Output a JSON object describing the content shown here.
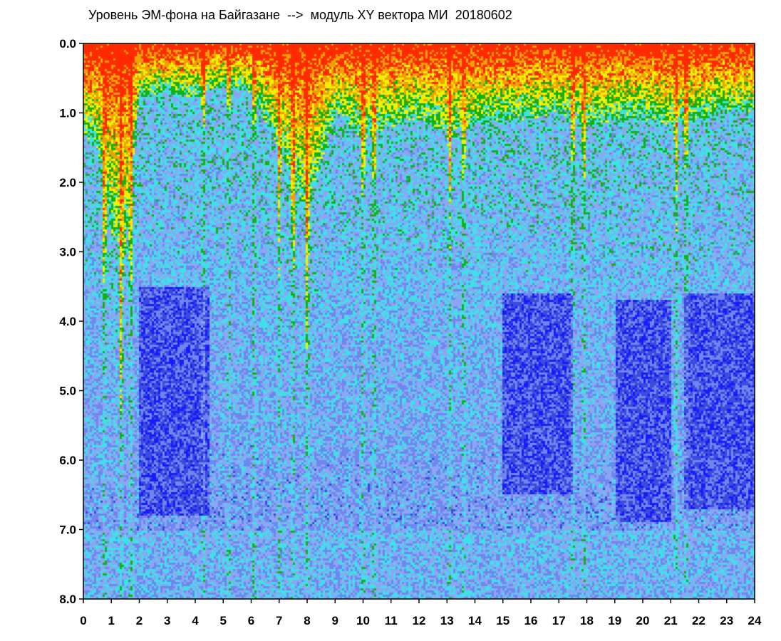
{
  "chart_data": {
    "type": "heatmap",
    "title": "Уровень ЭМ-фона на Байгазане  -->  модуль XY вектора МИ  20180602",
    "xlabel": "",
    "ylabel": "",
    "xlim": [
      0,
      24
    ],
    "ylim": [
      8.0,
      0.0
    ],
    "x_ticks": [
      "0",
      "1",
      "2",
      "3",
      "4",
      "5",
      "6",
      "7",
      "8",
      "9",
      "10",
      "11",
      "12",
      "13",
      "14",
      "15",
      "16",
      "17",
      "18",
      "19",
      "20",
      "21",
      "22",
      "23",
      "24"
    ],
    "y_ticks": [
      "0.0",
      "1.0",
      "2.0",
      "3.0",
      "4.0",
      "5.0",
      "6.0",
      "7.0",
      "8.0"
    ],
    "grid": false,
    "legend": "none",
    "colormap": [
      "#1a1aff",
      "#3b4bdc",
      "#6f86ee",
      "#8ba6f2",
      "#40e0e8",
      "#14b014",
      "#f0f000",
      "#f0a000",
      "#ff2a00"
    ],
    "gap_hours": [
      0.75,
      1.35,
      1.7,
      4.3,
      5.2,
      6.1,
      7.0,
      7.5,
      8.0,
      10.0,
      10.4,
      13.1,
      13.6,
      17.5,
      17.9,
      21.2,
      21.55
    ],
    "upper_band_depth": [
      {
        "x": 0.0,
        "y": 1.3
      },
      {
        "x": 0.5,
        "y": 1.5
      },
      {
        "x": 1.0,
        "y": 2.8
      },
      {
        "x": 1.5,
        "y": 3.0
      },
      {
        "x": 2.0,
        "y": 0.8
      },
      {
        "x": 3.0,
        "y": 0.7
      },
      {
        "x": 4.0,
        "y": 0.8
      },
      {
        "x": 5.0,
        "y": 0.6
      },
      {
        "x": 6.0,
        "y": 0.7
      },
      {
        "x": 7.0,
        "y": 1.5
      },
      {
        "x": 8.0,
        "y": 2.5
      },
      {
        "x": 9.0,
        "y": 1.0
      },
      {
        "x": 10.0,
        "y": 1.4
      },
      {
        "x": 11.0,
        "y": 1.2
      },
      {
        "x": 12.0,
        "y": 1.1
      },
      {
        "x": 13.0,
        "y": 1.3
      },
      {
        "x": 14.0,
        "y": 1.2
      },
      {
        "x": 15.0,
        "y": 1.1
      },
      {
        "x": 16.0,
        "y": 1.1
      },
      {
        "x": 17.0,
        "y": 1.0
      },
      {
        "x": 18.0,
        "y": 1.2
      },
      {
        "x": 19.0,
        "y": 1.1
      },
      {
        "x": 20.0,
        "y": 1.1
      },
      {
        "x": 21.0,
        "y": 1.2
      },
      {
        "x": 22.0,
        "y": 1.1
      },
      {
        "x": 23.0,
        "y": 1.0
      },
      {
        "x": 24.0,
        "y": 1.0
      }
    ],
    "deep_blue_regions": [
      {
        "x": [
          2.0,
          4.5
        ],
        "y": [
          3.5,
          6.8
        ]
      },
      {
        "x": [
          15.0,
          17.5
        ],
        "y": [
          3.6,
          6.5
        ]
      },
      {
        "x": [
          19.0,
          21.0
        ],
        "y": [
          3.7,
          6.9
        ]
      },
      {
        "x": [
          21.5,
          24.0
        ],
        "y": [
          3.6,
          6.7
        ]
      }
    ]
  }
}
